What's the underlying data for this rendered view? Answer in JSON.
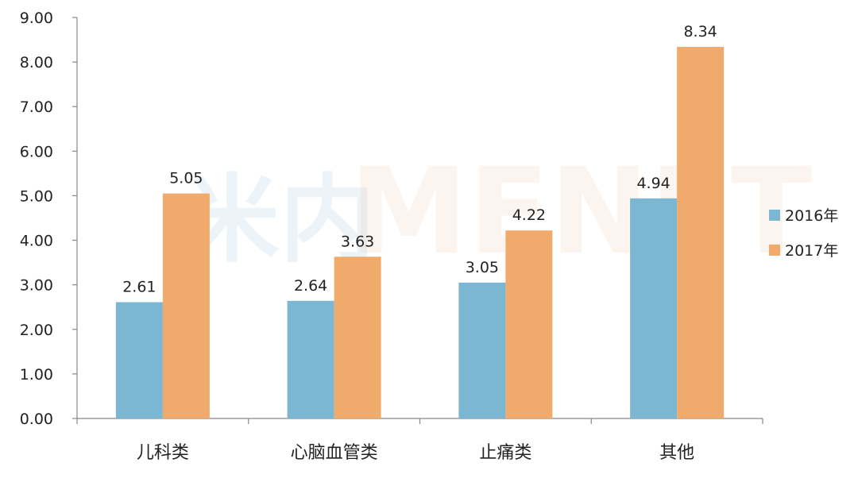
{
  "chart_data": {
    "type": "bar",
    "categories": [
      "儿科类",
      "心脑血管类",
      "止痛类",
      "其他"
    ],
    "series": [
      {
        "name": "2016年",
        "values": [
          2.61,
          2.64,
          3.05,
          4.94
        ],
        "color": "#7bb6d3"
      },
      {
        "name": "2017年",
        "values": [
          5.05,
          3.63,
          4.22,
          8.34
        ],
        "color": "#f0aa6c"
      }
    ],
    "data_labels": {
      "2016年": [
        "2.61",
        "2.64",
        "3.05",
        "4.94"
      ],
      "2017年": [
        "5.05",
        "3.63",
        "4.22",
        "8.34"
      ]
    },
    "y_ticks": [
      "0.00",
      "1.00",
      "2.00",
      "3.00",
      "4.00",
      "5.00",
      "6.00",
      "7.00",
      "8.00",
      "9.00"
    ],
    "ylim": [
      0,
      9
    ],
    "grid": false,
    "legend_position": "right",
    "title": "",
    "xlabel": "",
    "ylabel": ""
  },
  "watermark": {
    "cn": "米内",
    "en": "MENET"
  }
}
